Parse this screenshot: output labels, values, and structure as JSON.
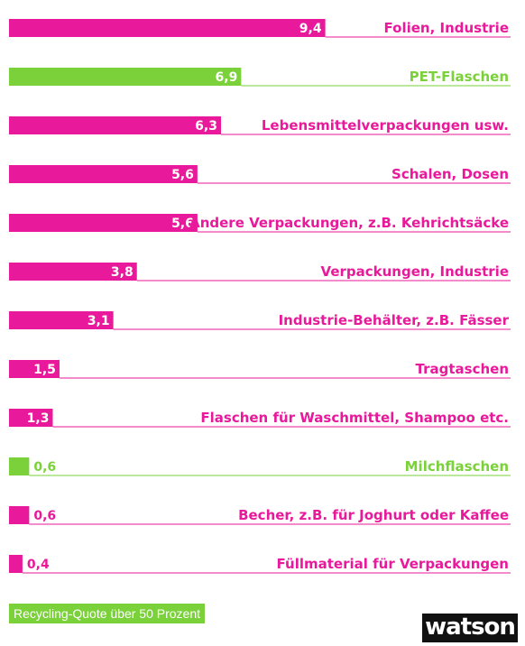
{
  "chart_data": {
    "type": "bar",
    "orientation": "horizontal",
    "categories": [
      "Folien, Industrie",
      "PET-Flaschen",
      "Lebensmittelverpackungen usw.",
      "Schalen, Dosen",
      "Andere Verpackungen, z.B. Kehrichtsäcke",
      "Verpackungen, Industrie",
      "Industrie-Behälter, z.B. Fässer",
      "Tragtaschen",
      "Flaschen für Waschmittel, Shampoo etc.",
      "Milchflaschen",
      "Becher, z.B. für Joghurt oder Kaffee",
      "Füllmaterial für Verpackungen"
    ],
    "values": [
      9.4,
      6.9,
      6.3,
      5.6,
      5.6,
      3.8,
      3.1,
      1.5,
      1.3,
      0.6,
      0.6,
      0.4
    ],
    "value_labels": [
      "9,4",
      "6,9",
      "6,3",
      "5,6",
      "5,6",
      "3,8",
      "3,1",
      "1,5",
      "1,3",
      "0,6",
      "0,6",
      "0,4"
    ],
    "recycling_over_50": [
      false,
      true,
      false,
      false,
      false,
      false,
      false,
      false,
      false,
      true,
      false,
      false
    ],
    "colors": {
      "default": "#e8199a",
      "highlight": "#7ad13a"
    },
    "legend": {
      "label": "Recycling-Quote über 50 Prozent",
      "color": "#7ad13a"
    }
  },
  "brand": {
    "logo_text": "watson"
  }
}
